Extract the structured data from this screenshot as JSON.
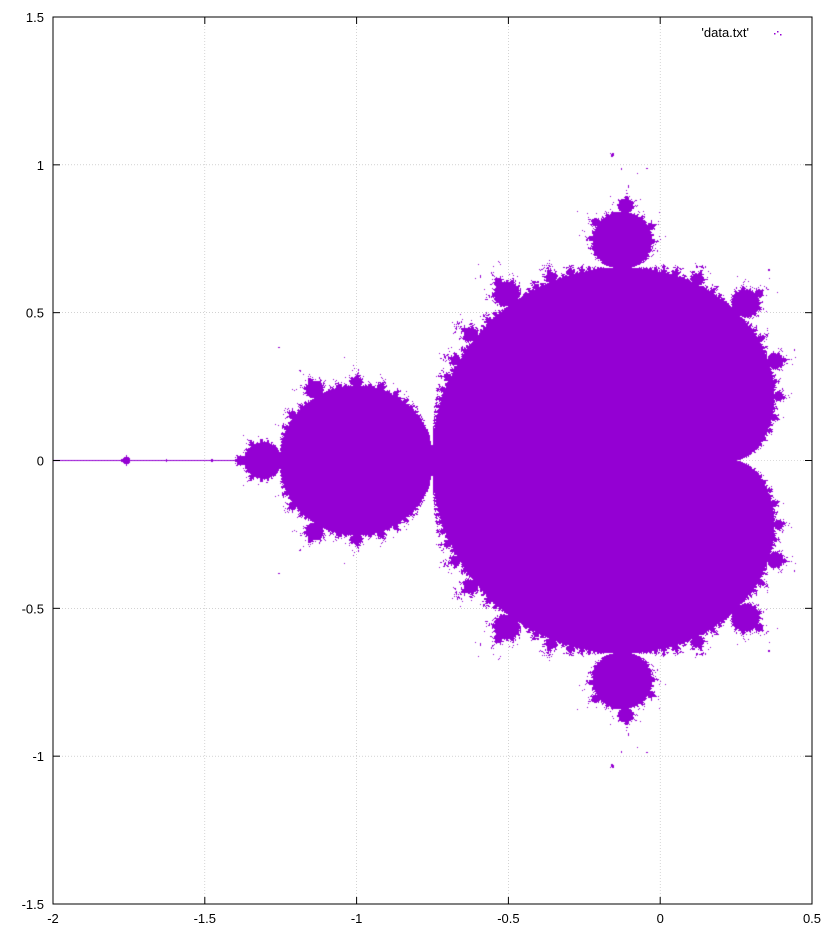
{
  "chart_data": {
    "type": "scatter",
    "title": "",
    "xlabel": "",
    "ylabel": "",
    "xlim": [
      -2,
      0.5
    ],
    "ylim": [
      -1.5,
      1.5
    ],
    "grid": true,
    "legend_position": "top-right",
    "x_ticks": [
      {
        "value": -2,
        "label": "-2"
      },
      {
        "value": -1.5,
        "label": "-1.5"
      },
      {
        "value": -1,
        "label": "-1"
      },
      {
        "value": -0.5,
        "label": "-0.5"
      },
      {
        "value": 0,
        "label": "0"
      },
      {
        "value": 0.5,
        "label": "0.5"
      }
    ],
    "y_ticks": [
      {
        "value": -1.5,
        "label": "-1.5"
      },
      {
        "value": -1,
        "label": "-1"
      },
      {
        "value": -0.5,
        "label": "-0.5"
      },
      {
        "value": 0,
        "label": "0"
      },
      {
        "value": 0.5,
        "label": "0.5"
      },
      {
        "value": 1,
        "label": "1"
      },
      {
        "value": 1.5,
        "label": "1.5"
      }
    ],
    "series": [
      {
        "name": "'data.txt'",
        "color": "#9400d3",
        "description_shape": "Mandelbrot set",
        "iterations": 60
      }
    ]
  }
}
